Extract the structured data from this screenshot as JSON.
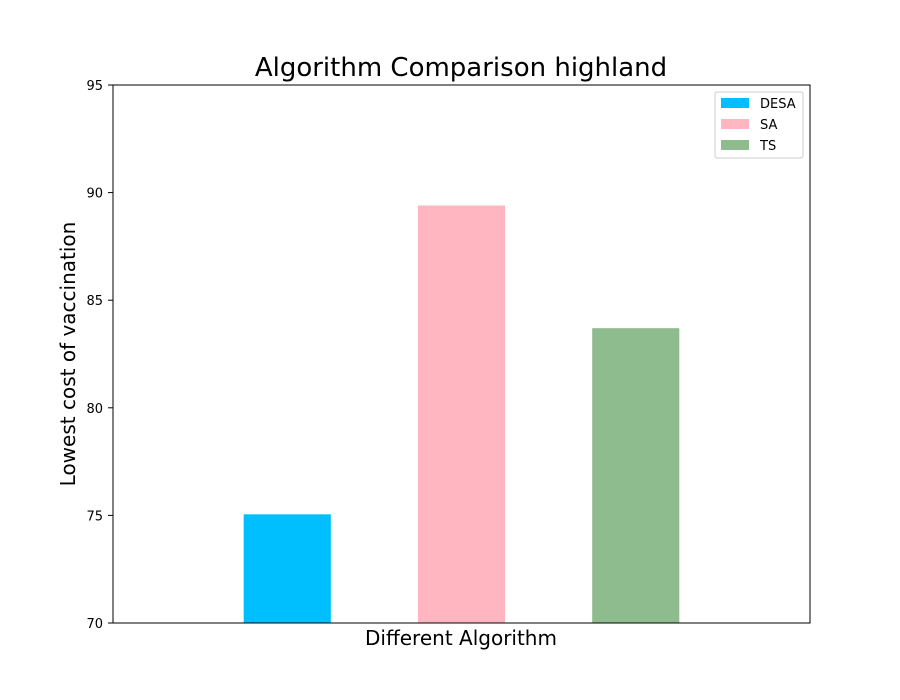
{
  "chart_data": {
    "type": "bar",
    "title": "Algorithm Comparison highland",
    "xlabel": "Different Algorithm",
    "ylabel": "Lowest cost of vaccination",
    "ylim": [
      70,
      95
    ],
    "yticks": [
      70,
      75,
      80,
      85,
      90,
      95
    ],
    "categories": [
      "DESA",
      "SA",
      "TS"
    ],
    "values": [
      75.05,
      89.4,
      83.7
    ],
    "colors": [
      "#00BFFF",
      "#FFB6C1",
      "#8FBC8F"
    ],
    "grid": false,
    "legend": {
      "placement": "top-right",
      "entries": [
        "DESA",
        "SA",
        "TS"
      ]
    }
  }
}
